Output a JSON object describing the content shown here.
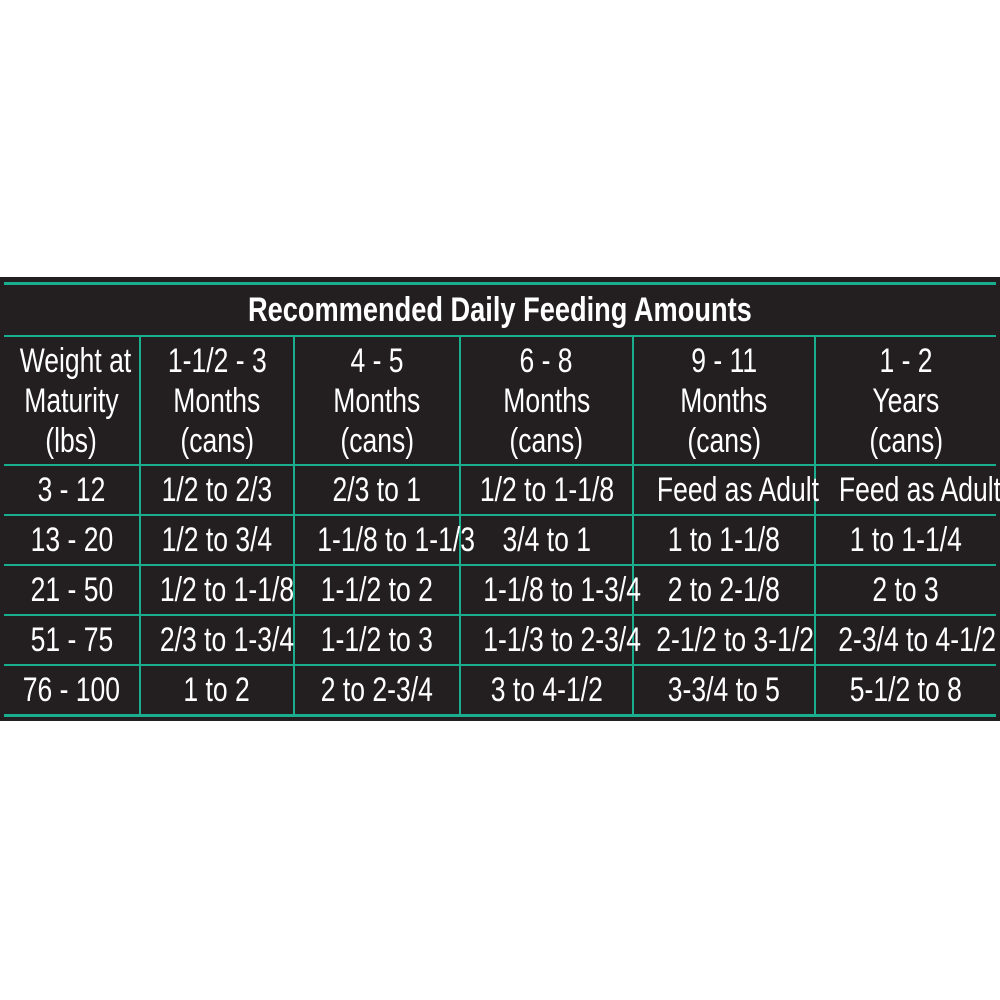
{
  "title": "Recommended Daily Feeding Amounts",
  "colors": {
    "background": "#231f20",
    "grid": "#1aae8e",
    "text": "#ffffff"
  },
  "headers": [
    [
      "Weight at",
      "Maturity",
      "(lbs)"
    ],
    [
      "1-1/2 - 3",
      "Months",
      "(cans)"
    ],
    [
      "4 - 5",
      "Months",
      "(cans)"
    ],
    [
      "6 - 8",
      "Months",
      "(cans)"
    ],
    [
      "9 - 11",
      "Months",
      "(cans)"
    ],
    [
      "1 - 2",
      "Years",
      "(cans)"
    ]
  ],
  "rows": [
    [
      "3 - 12",
      "1/2 to 2/3",
      "2/3 to 1",
      "1/2 to 1-1/8",
      "Feed as Adult",
      "Feed as Adult"
    ],
    [
      "13 - 20",
      "1/2 to 3/4",
      "1-1/8 to 1-1/3",
      "3/4 to 1",
      "1 to 1-1/8",
      "1 to 1-1/4"
    ],
    [
      "21 - 50",
      "1/2 to 1-1/8",
      "1-1/2 to 2",
      "1-1/8 to 1-3/4",
      "2 to 2-1/8",
      "2 to 3"
    ],
    [
      "51 - 75",
      "2/3 to 1-3/4",
      "1-1/2 to 3",
      "1-1/3 to 2-3/4",
      "2-1/2 to 3-1/2",
      "2-3/4 to 4-1/2"
    ],
    [
      "76 - 100",
      "1 to 2",
      "2 to 2-3/4",
      "3 to 4-1/2",
      "3-3/4 to 5",
      "5-1/2 to 8"
    ]
  ]
}
